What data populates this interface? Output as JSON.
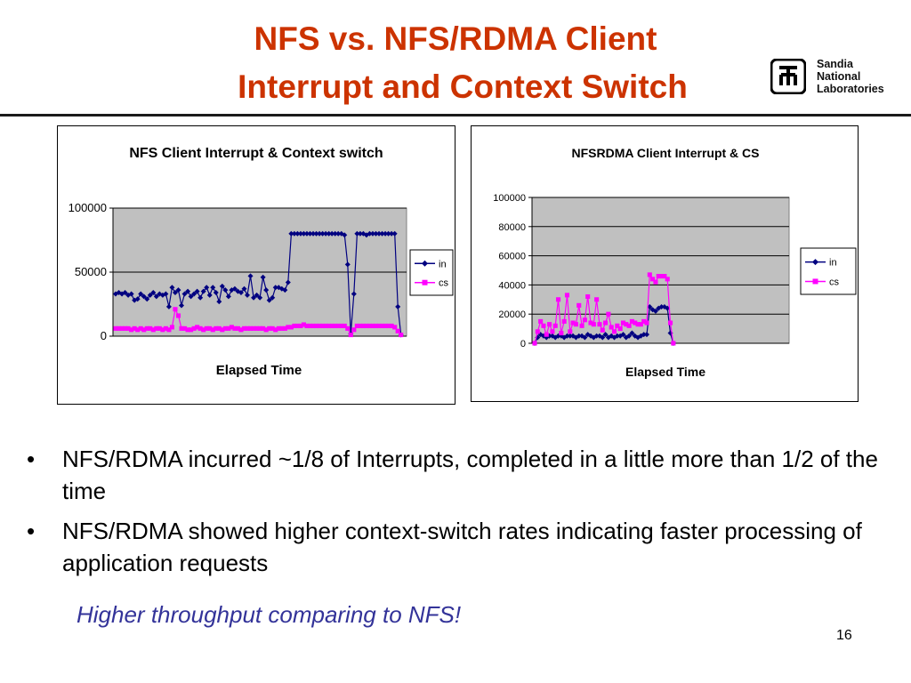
{
  "slide": {
    "title_line1": "NFS vs. NFS/RDMA Client",
    "title_line2": "Interrupt and Context Switch",
    "logo_text": [
      "Sandia",
      "National",
      "Laboratories"
    ],
    "bullets": [
      "NFS/RDMA incurred ~1/8 of Interrupts, completed in a little more than 1/2 of the time",
      "NFS/RDMA showed higher context-switch rates indicating faster processing of application requests"
    ],
    "bullet_symbol": "•",
    "note": "Higher throughput comparing to NFS!",
    "page_number": "16",
    "colors": {
      "title": "#cc3300",
      "note": "#333399",
      "series_in": "#000080",
      "series_cs": "#ff00ff",
      "plot_bg": "#c0c0c0"
    }
  },
  "chart_data": [
    {
      "type": "line",
      "title": "NFS Client Interrupt & Context switch",
      "xlabel": "Elapsed Time",
      "ylabel": "",
      "ylim": [
        0,
        100000
      ],
      "yticks": [
        0,
        50000,
        100000
      ],
      "grid": true,
      "legend": "right",
      "series": [
        {
          "name": "in",
          "values": [
            33000,
            34000,
            33000,
            34000,
            32000,
            33000,
            28000,
            29000,
            33000,
            31000,
            29000,
            32000,
            34000,
            31000,
            33000,
            32000,
            33000,
            23000,
            38000,
            34000,
            36000,
            24000,
            33000,
            35000,
            31000,
            33000,
            35000,
            30000,
            35000,
            38000,
            32000,
            38000,
            34000,
            27000,
            39000,
            36000,
            31000,
            36000,
            37000,
            35000,
            34000,
            37000,
            32000,
            47000,
            30000,
            32000,
            30000,
            46000,
            36000,
            28000,
            30000,
            38000,
            38000,
            37000,
            36000,
            42000,
            80000,
            80000,
            80000,
            80000,
            80000,
            80000,
            80000,
            80000,
            80000,
            80000,
            80000,
            80000,
            80000,
            80000,
            80000,
            80000,
            80000,
            79000,
            56000,
            2000,
            33000,
            80000,
            80000,
            80000,
            79000,
            80000,
            80000,
            80000,
            80000,
            80000,
            80000,
            80000,
            80000,
            80000,
            23000,
            1000
          ]
        },
        {
          "name": "cs",
          "values": [
            6000,
            6000,
            6000,
            6000,
            6000,
            5000,
            6000,
            5000,
            6000,
            5000,
            6000,
            6000,
            5000,
            6000,
            6000,
            5000,
            6000,
            5000,
            7000,
            21000,
            16000,
            6000,
            6000,
            5000,
            5000,
            6000,
            7000,
            6000,
            5000,
            6000,
            6000,
            5000,
            6000,
            6000,
            5000,
            6000,
            6000,
            7000,
            6000,
            6000,
            5000,
            6000,
            6000,
            6000,
            6000,
            6000,
            6000,
            6000,
            5000,
            6000,
            6000,
            5000,
            6000,
            6000,
            6000,
            7000,
            7000,
            8000,
            8000,
            8000,
            9000,
            8000,
            8000,
            8000,
            8000,
            8000,
            8000,
            8000,
            8000,
            8000,
            8000,
            8000,
            8000,
            8000,
            6000,
            1000,
            5000,
            8000,
            8000,
            8000,
            8000,
            8000,
            8000,
            8000,
            8000,
            8000,
            8000,
            8000,
            8000,
            7000,
            4000,
            1000
          ]
        }
      ]
    },
    {
      "type": "line",
      "title": "NFSRDMA Client Interrupt & CS",
      "xlabel": "Elapsed Time",
      "ylabel": "",
      "ylim": [
        0,
        100000
      ],
      "yticks": [
        0,
        20000,
        40000,
        60000,
        80000,
        100000
      ],
      "grid": true,
      "legend": "right",
      "series": [
        {
          "name": "in",
          "values": [
            0,
            4000,
            6000,
            5000,
            4000,
            5000,
            5000,
            4000,
            5000,
            5000,
            4000,
            5000,
            5000,
            5000,
            4000,
            5000,
            5000,
            4000,
            6000,
            5000,
            4000,
            5000,
            5000,
            4000,
            6000,
            4000,
            5000,
            4000,
            5000,
            5000,
            6000,
            4000,
            5000,
            7000,
            5000,
            4000,
            5000,
            6000,
            6000,
            25000,
            23000,
            22000,
            24000,
            25000,
            25000,
            24000,
            7000,
            0
          ]
        },
        {
          "name": "cs",
          "values": [
            0,
            8000,
            15000,
            12000,
            6000,
            13000,
            8000,
            12000,
            30000,
            7000,
            15000,
            33000,
            8000,
            14000,
            13000,
            26000,
            12000,
            16000,
            32000,
            14000,
            13000,
            30000,
            13000,
            9000,
            14000,
            20000,
            11000,
            8000,
            12000,
            10000,
            14000,
            13000,
            12000,
            15000,
            14000,
            13000,
            13000,
            15000,
            14000,
            47000,
            44000,
            42000,
            46000,
            46000,
            46000,
            44000,
            14000,
            0
          ]
        }
      ]
    }
  ]
}
